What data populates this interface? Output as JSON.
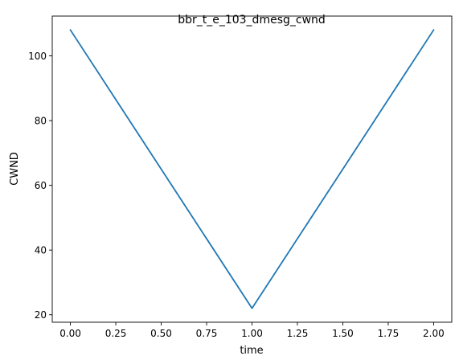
{
  "chart_data": {
    "type": "line",
    "title": "bbr_t_e_103_dmesg_cwnd",
    "xlabel": "time",
    "ylabel": "CWND",
    "xlim": [
      -0.1,
      2.1
    ],
    "ylim": [
      17.7,
      112.3
    ],
    "xticks": [
      0.0,
      0.25,
      0.5,
      0.75,
      1.0,
      1.25,
      1.5,
      1.75,
      2.0
    ],
    "xtick_labels": [
      "0.00",
      "0.25",
      "0.50",
      "0.75",
      "1.00",
      "1.25",
      "1.50",
      "1.75",
      "2.00"
    ],
    "yticks": [
      20,
      40,
      60,
      80,
      100
    ],
    "ytick_labels": [
      "20",
      "40",
      "60",
      "80",
      "100"
    ],
    "grid": false,
    "legend": "none",
    "series": [
      {
        "x": [
          0.0,
          1.0,
          2.0
        ],
        "y": [
          108,
          22,
          108
        ],
        "color": "#1f77b4"
      }
    ]
  }
}
